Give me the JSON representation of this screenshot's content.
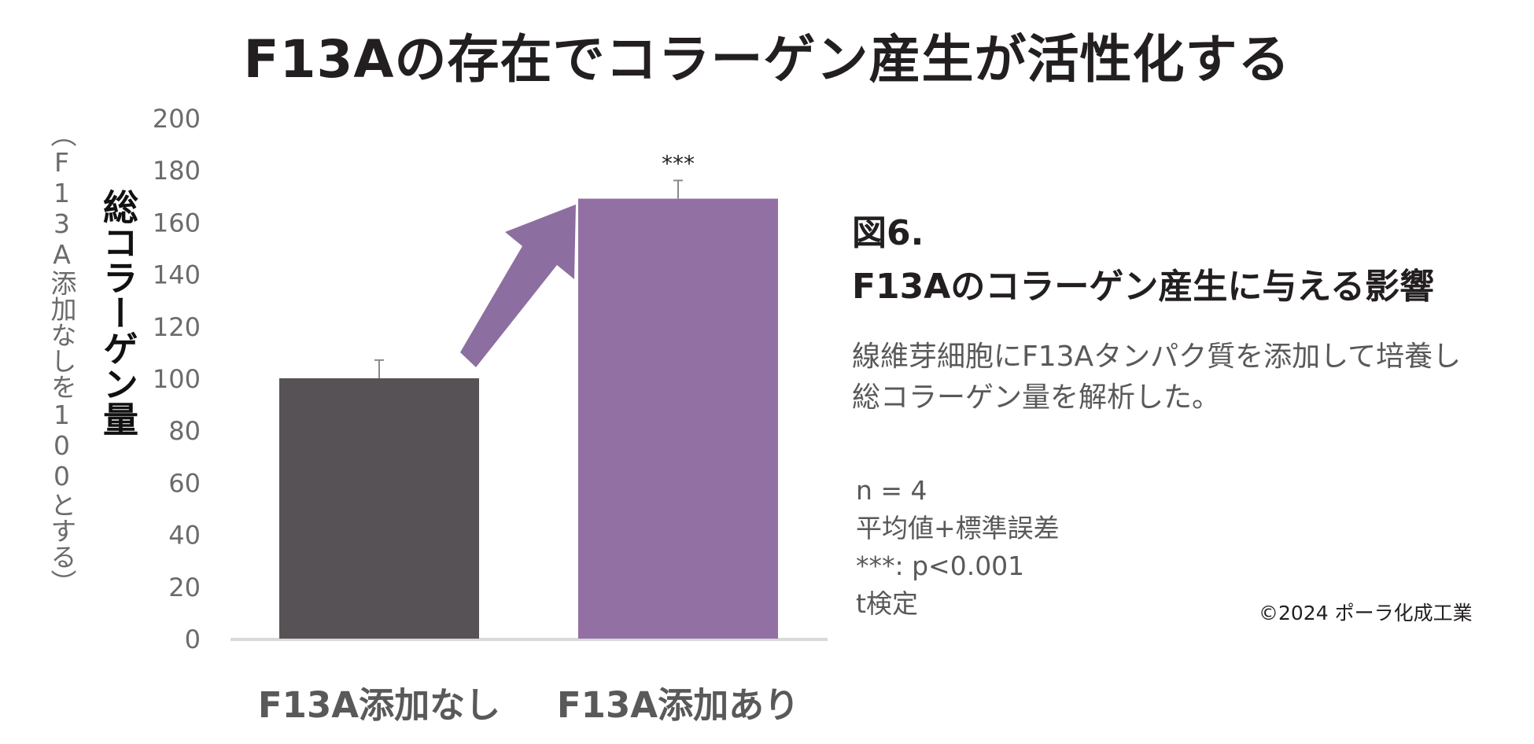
{
  "title": "F13Aの存在でコラーゲン産生が活性化する",
  "colors": {
    "bar_without": "#575255",
    "bar_with": "#9270a3",
    "arrow": "#8d6ea0",
    "axis_text": "#6b6b6b",
    "baseline": "#d9d9d9"
  },
  "chart_data": {
    "type": "bar",
    "categories": [
      "F13A添加なし",
      "F13A添加あり"
    ],
    "values": [
      100,
      169
    ],
    "error": [
      7,
      7
    ],
    "significance": [
      "",
      "***"
    ],
    "ylabel": "総コラーゲン量",
    "yunit": "（F13A添加なしを100とする）",
    "ylim": [
      0,
      200
    ],
    "yticks": [
      0,
      20,
      40,
      60,
      80,
      100,
      120,
      140,
      160,
      180,
      200
    ],
    "grid": false,
    "legend": "none"
  },
  "figure": {
    "number": "図6.",
    "caption": "F13Aのコラーゲン産生に与える影響",
    "description": [
      "線維芽細胞にF13Aタンパク質を添加して培養し",
      "総コラーゲン量を解析した。"
    ]
  },
  "notes": [
    "n = 4",
    "平均値+標準誤差",
    "***: p<0.001",
    "t検定"
  ],
  "copyright": "©2024 ポーラ化成工業"
}
